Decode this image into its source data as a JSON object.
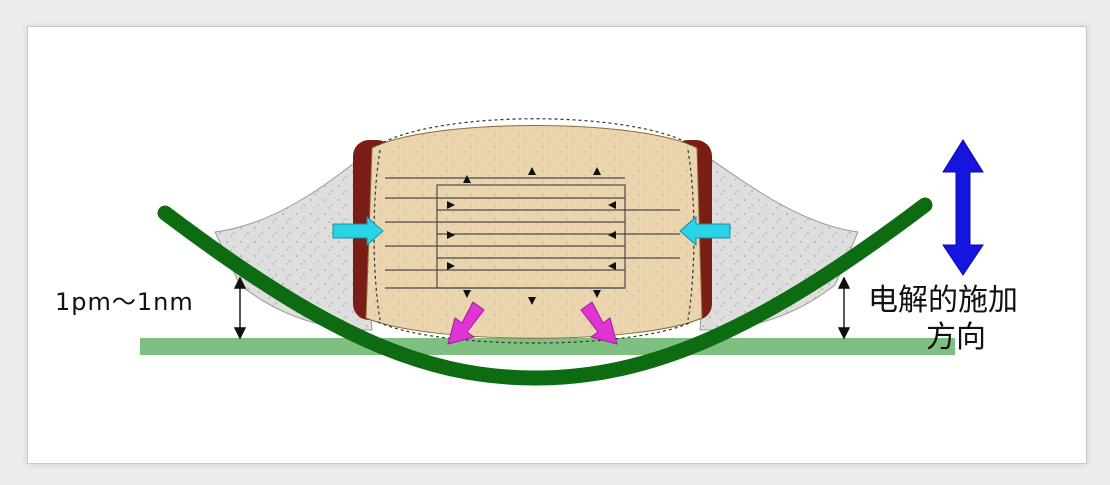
{
  "diagram": {
    "gap_label": "1pm～1nm",
    "direction_label_line1": "电解的施加",
    "direction_label_line2": "方向",
    "colors": {
      "substrate": "#7fbf7f",
      "board_curve": "#0d6b12",
      "body_fill": "#ead5ae",
      "termination": "#7a1d14",
      "solder": "#dcdcdc",
      "cyan_arrow": "#2ad3e8",
      "magenta_arrow": "#e034d6",
      "blue_arrow": "#1515e0"
    },
    "icons": {
      "left_inward": "arrow-right-icon",
      "right_inward": "arrow-left-icon",
      "stress_down": "arrow-down-icon",
      "bidirectional": "arrow-updown-icon"
    }
  }
}
